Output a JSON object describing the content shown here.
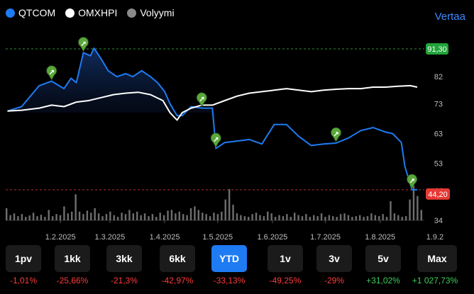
{
  "legend": [
    {
      "label": "QTCOM",
      "color": "#1e7bf2"
    },
    {
      "label": "OMXHPI",
      "color": "#ffffff"
    },
    {
      "label": "Volyymi",
      "color": "#8a8a8a"
    }
  ],
  "compare_label": "Vertaa",
  "price_tags": {
    "high": "91,30",
    "low": "44,20",
    "high_color": "#22a33a",
    "low_color": "#e53935"
  },
  "ranges": [
    {
      "label": "1pv",
      "change": "-1,01%",
      "dir": "neg"
    },
    {
      "label": "1kk",
      "change": "-25,66%",
      "dir": "neg"
    },
    {
      "label": "3kk",
      "change": "-21,3%",
      "dir": "neg"
    },
    {
      "label": "6kk",
      "change": "-42,97%",
      "dir": "neg"
    },
    {
      "label": "YTD",
      "change": "-33,13%",
      "dir": "neg",
      "active": true
    },
    {
      "label": "1v",
      "change": "-49,25%",
      "dir": "neg"
    },
    {
      "label": "3v",
      "change": "-29%",
      "dir": "neg"
    },
    {
      "label": "5v",
      "change": "+31,02%",
      "dir": "pos"
    },
    {
      "label": "Max",
      "change": "+1 027,73%",
      "dir": "pos"
    }
  ],
  "chart_data": {
    "type": "line",
    "x_ticks": [
      "1.2.2025",
      "1.3.2025",
      "1.4.2025",
      "1.5.2025",
      "1.6.2025",
      "1.7.2025",
      "1.8.2025",
      "1.9.2"
    ],
    "y_ticks": [
      "92",
      "82",
      "73",
      "63",
      "53",
      "44",
      "34"
    ],
    "ylim": [
      34,
      92
    ],
    "series": [
      {
        "name": "QTCOM",
        "color": "#1e7bf2",
        "x": [
          "2025-01-02",
          "2025-01-10",
          "2025-01-20",
          "2025-01-27",
          "2025-02-03",
          "2025-02-07",
          "2025-02-10",
          "2025-02-14",
          "2025-02-18",
          "2025-02-20",
          "2025-02-24",
          "2025-02-28",
          "2025-03-05",
          "2025-03-10",
          "2025-03-14",
          "2025-03-19",
          "2025-03-24",
          "2025-03-28",
          "2025-04-01",
          "2025-04-04",
          "2025-04-08",
          "2025-04-11",
          "2025-04-16",
          "2025-04-22",
          "2025-04-25",
          "2025-04-28",
          "2025-04-30",
          "2025-05-05",
          "2025-05-12",
          "2025-05-19",
          "2025-05-26",
          "2025-06-02",
          "2025-06-09",
          "2025-06-16",
          "2025-06-23",
          "2025-06-30",
          "2025-07-07",
          "2025-07-14",
          "2025-07-21",
          "2025-07-28",
          "2025-08-04",
          "2025-08-08",
          "2025-08-13",
          "2025-08-15",
          "2025-08-19",
          "2025-08-22"
        ],
        "y": [
          70.5,
          72,
          79,
          80.5,
          78,
          81.5,
          80,
          90,
          89,
          91.5,
          88,
          84,
          82,
          83,
          82,
          84,
          82,
          80,
          77,
          73,
          69,
          69,
          72,
          71.5,
          71.5,
          71.5,
          58,
          60,
          60.5,
          61,
          59.5,
          66,
          66,
          62,
          59,
          59.5,
          59.8,
          61.5,
          64,
          65,
          63.5,
          63,
          60,
          52,
          44.2,
          44.2
        ]
      },
      {
        "name": "OMXHPI",
        "color": "#ffffff",
        "x": [
          "2025-01-02",
          "2025-01-10",
          "2025-01-20",
          "2025-01-27",
          "2025-02-03",
          "2025-02-10",
          "2025-02-17",
          "2025-02-24",
          "2025-03-03",
          "2025-03-10",
          "2025-03-17",
          "2025-03-24",
          "2025-03-31",
          "2025-04-04",
          "2025-04-08",
          "2025-04-11",
          "2025-04-16",
          "2025-04-22",
          "2025-04-28",
          "2025-05-05",
          "2025-05-12",
          "2025-05-19",
          "2025-05-26",
          "2025-06-02",
          "2025-06-09",
          "2025-06-16",
          "2025-06-23",
          "2025-06-30",
          "2025-07-07",
          "2025-07-14",
          "2025-07-21",
          "2025-07-28",
          "2025-08-04",
          "2025-08-11",
          "2025-08-18",
          "2025-08-22"
        ],
        "y": [
          70.5,
          70.8,
          71.5,
          72.5,
          72,
          73.5,
          74,
          75,
          76,
          76.5,
          76.8,
          76,
          74,
          70,
          67.5,
          70,
          71.5,
          72.5,
          72.5,
          74,
          75.5,
          76.5,
          77,
          77.5,
          78,
          77.5,
          77,
          77.5,
          77.8,
          78,
          78,
          78.5,
          78.5,
          78.8,
          79,
          78.5
        ]
      }
    ],
    "volume_relative": [
      0.35,
      0.15,
      0.2,
      0.12,
      0.18,
      0.1,
      0.14,
      0.22,
      0.12,
      0.16,
      0.1,
      0.3,
      0.12,
      0.18,
      0.15,
      0.4,
      0.2,
      0.25,
      0.75,
      0.25,
      0.18,
      0.28,
      0.22,
      0.35,
      0.2,
      0.12,
      0.18,
      0.25,
      0.15,
      0.1,
      0.22,
      0.18,
      0.3,
      0.2,
      0.25,
      0.15,
      0.2,
      0.12,
      0.18,
      0.1,
      0.22,
      0.15,
      0.28,
      0.3,
      0.2,
      0.25,
      0.18,
      0.15,
      0.35,
      0.4,
      0.3,
      0.22,
      0.18,
      0.12,
      0.22,
      0.18,
      0.25,
      0.6,
      0.9,
      0.45,
      0.2,
      0.15,
      0.12,
      0.1,
      0.18,
      0.22,
      0.15,
      0.12,
      0.25,
      0.2,
      0.1,
      0.15,
      0.12,
      0.18,
      0.1,
      0.22,
      0.15,
      0.12,
      0.18,
      0.1,
      0.15,
      0.12,
      0.2,
      0.1,
      0.15,
      0.12,
      0.1,
      0.18,
      0.2,
      0.15,
      0.1,
      0.12,
      0.15,
      0.1,
      0.12,
      0.2,
      0.15,
      0.12,
      0.18,
      0.1,
      0.55,
      0.2,
      0.15,
      0.1,
      0.12,
      0.6,
      1.0,
      0.7,
      0.3
    ],
    "events": [
      {
        "date": "2025-01-27",
        "price": 80.5,
        "dir": "up"
      },
      {
        "date": "2025-02-14",
        "price": 90,
        "dir": "up"
      },
      {
        "date": "2025-04-22",
        "price": 71.5,
        "dir": "up"
      },
      {
        "date": "2025-04-30",
        "price": 58,
        "dir": "up"
      },
      {
        "date": "2025-07-07",
        "price": 59.8,
        "dir": "up"
      },
      {
        "date": "2025-08-19",
        "price": 44.2,
        "dir": "up"
      }
    ]
  }
}
